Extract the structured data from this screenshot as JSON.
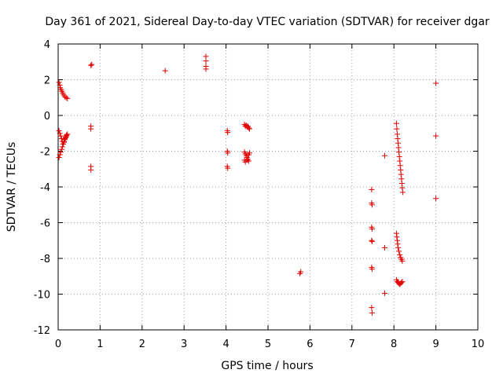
{
  "chart_data": {
    "type": "scatter",
    "title": "Day 361 of 2021, Sidereal Day-to-day VTEC variation (SDTVAR) for receiver dgar",
    "xlabel": "GPS time / hours",
    "ylabel": "SDTVAR / TECUs",
    "xlim": [
      0,
      10
    ],
    "ylim": [
      -12,
      4
    ],
    "x_ticks": [
      "0",
      "1",
      "2",
      "3",
      "4",
      "5",
      "6",
      "7",
      "8",
      "9",
      "10"
    ],
    "y_ticks": [
      "4",
      "2",
      "0",
      "-2",
      "-4",
      "-6",
      "-8",
      "-10",
      "-12"
    ],
    "grid": true,
    "marker": "+",
    "color": "#e00000",
    "series": [
      {
        "name": "dgar",
        "points": [
          [
            0.02,
            1.85
          ],
          [
            0.04,
            1.7
          ],
          [
            0.05,
            1.55
          ],
          [
            0.07,
            1.45
          ],
          [
            0.09,
            1.35
          ],
          [
            0.11,
            1.25
          ],
          [
            0.13,
            1.15
          ],
          [
            0.16,
            1.05
          ],
          [
            0.19,
            1.0
          ],
          [
            0.22,
            0.95
          ],
          [
            0.02,
            -0.85
          ],
          [
            0.04,
            -1.0
          ],
          [
            0.06,
            -1.15
          ],
          [
            0.08,
            -1.3
          ],
          [
            0.1,
            -1.45
          ],
          [
            0.12,
            -1.6
          ],
          [
            0.14,
            -1.5
          ],
          [
            0.16,
            -1.35
          ],
          [
            0.18,
            -1.25
          ],
          [
            0.2,
            -1.15
          ],
          [
            0.22,
            -1.05
          ],
          [
            0.02,
            -2.35
          ],
          [
            0.04,
            -2.2
          ],
          [
            0.06,
            -2.05
          ],
          [
            0.08,
            -1.9
          ],
          [
            0.1,
            -1.75
          ],
          [
            0.12,
            -1.6
          ],
          [
            0.14,
            -1.45
          ],
          [
            0.16,
            -1.3
          ],
          [
            0.18,
            -1.2
          ],
          [
            0.2,
            -1.1
          ],
          [
            0.78,
            2.8
          ],
          [
            0.8,
            2.85
          ],
          [
            0.78,
            -0.6
          ],
          [
            0.78,
            -0.75
          ],
          [
            0.78,
            -2.85
          ],
          [
            0.78,
            -3.05
          ],
          [
            2.55,
            2.5
          ],
          [
            3.52,
            3.3
          ],
          [
            3.52,
            3.05
          ],
          [
            3.52,
            2.75
          ],
          [
            3.52,
            2.6
          ],
          [
            4.03,
            -0.85
          ],
          [
            4.04,
            -0.95
          ],
          [
            4.03,
            -2.0
          ],
          [
            4.04,
            -2.1
          ],
          [
            4.03,
            -2.85
          ],
          [
            4.04,
            -2.95
          ],
          [
            4.44,
            -0.5
          ],
          [
            4.46,
            -0.6
          ],
          [
            4.48,
            -0.55
          ],
          [
            4.5,
            -0.65
          ],
          [
            4.52,
            -0.6
          ],
          [
            4.54,
            -0.7
          ],
          [
            4.56,
            -0.75
          ],
          [
            4.44,
            -2.05
          ],
          [
            4.46,
            -2.15
          ],
          [
            4.48,
            -2.25
          ],
          [
            4.5,
            -2.35
          ],
          [
            4.52,
            -2.45
          ],
          [
            4.54,
            -2.2
          ],
          [
            4.56,
            -2.1
          ],
          [
            4.44,
            -2.5
          ],
          [
            4.46,
            -2.6
          ],
          [
            4.5,
            -2.5
          ],
          [
            4.54,
            -2.55
          ],
          [
            5.76,
            -8.85
          ],
          [
            5.78,
            -8.75
          ],
          [
            7.47,
            -4.15
          ],
          [
            7.47,
            -4.9
          ],
          [
            7.48,
            -5.0
          ],
          [
            7.47,
            -6.25
          ],
          [
            7.48,
            -6.35
          ],
          [
            7.47,
            -7.0
          ],
          [
            7.48,
            -7.05
          ],
          [
            7.47,
            -8.5
          ],
          [
            7.48,
            -8.6
          ],
          [
            7.47,
            -10.75
          ],
          [
            7.48,
            -11.05
          ],
          [
            7.78,
            -2.25
          ],
          [
            7.78,
            -7.4
          ],
          [
            7.78,
            -9.95
          ],
          [
            8.06,
            -0.45
          ],
          [
            8.07,
            -0.75
          ],
          [
            8.08,
            -1.05
          ],
          [
            8.09,
            -1.3
          ],
          [
            8.1,
            -1.55
          ],
          [
            8.11,
            -1.8
          ],
          [
            8.12,
            -2.05
          ],
          [
            8.13,
            -2.3
          ],
          [
            8.14,
            -2.55
          ],
          [
            8.15,
            -2.8
          ],
          [
            8.16,
            -3.05
          ],
          [
            8.17,
            -3.3
          ],
          [
            8.18,
            -3.55
          ],
          [
            8.19,
            -3.8
          ],
          [
            8.2,
            -4.05
          ],
          [
            8.21,
            -4.3
          ],
          [
            8.06,
            -6.6
          ],
          [
            8.07,
            -6.8
          ],
          [
            8.08,
            -7.0
          ],
          [
            8.09,
            -7.2
          ],
          [
            8.1,
            -7.4
          ],
          [
            8.12,
            -7.6
          ],
          [
            8.14,
            -7.8
          ],
          [
            8.16,
            -7.95
          ],
          [
            8.18,
            -8.05
          ],
          [
            8.2,
            -8.15
          ],
          [
            8.06,
            -9.2
          ],
          [
            8.08,
            -9.3
          ],
          [
            8.1,
            -9.35
          ],
          [
            8.12,
            -9.4
          ],
          [
            8.14,
            -9.45
          ],
          [
            8.16,
            -9.4
          ],
          [
            8.18,
            -9.35
          ],
          [
            8.2,
            -9.3
          ],
          [
            9.0,
            1.8
          ],
          [
            9.0,
            -1.15
          ],
          [
            9.0,
            -4.65
          ]
        ]
      }
    ]
  }
}
